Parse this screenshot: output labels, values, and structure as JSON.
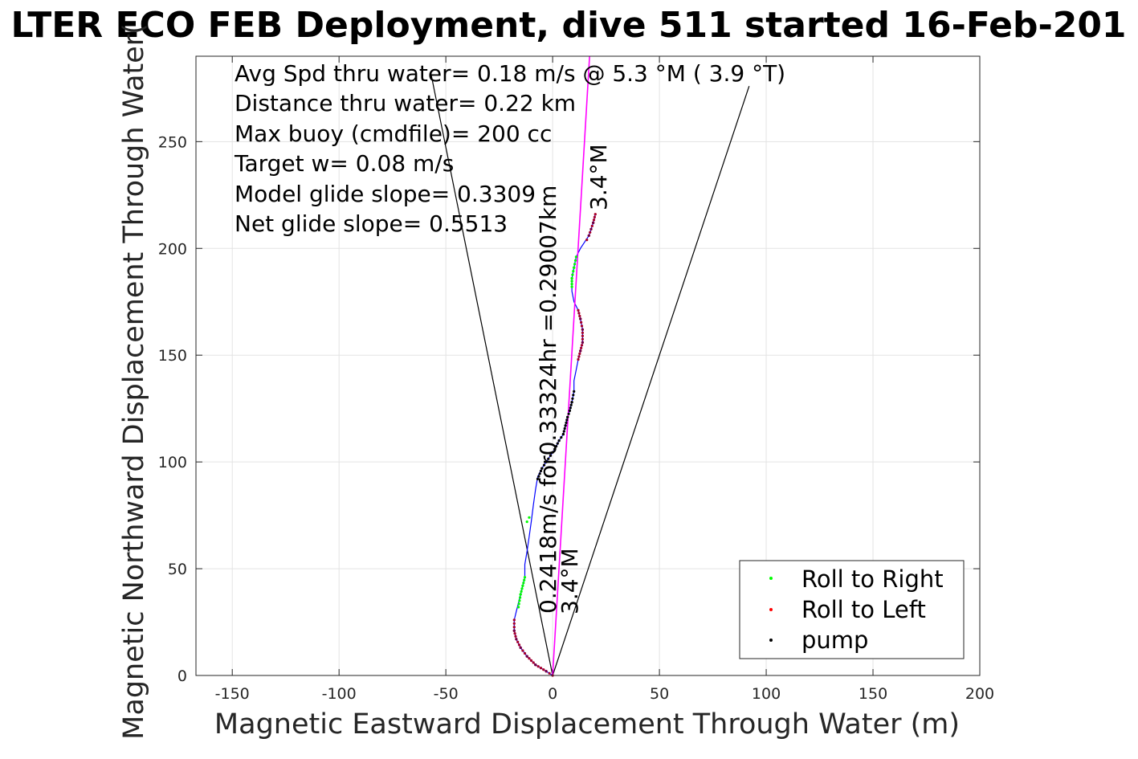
{
  "chart_data": {
    "type": "scatter",
    "title": "LTER ECO FEB Deployment, dive 511 started 16-Feb-201",
    "xlabel": "Magnetic Eastward Displacement Through Water (m)",
    "ylabel": "Magnetic Northward Displacement Through Water(",
    "xlim": [
      -167,
      200
    ],
    "ylim": [
      0,
      290
    ],
    "xticks": [
      -150,
      -100,
      -50,
      0,
      50,
      100,
      150,
      200
    ],
    "xtick_labels": [
      "-150",
      "-100",
      "-50",
      "0",
      "50",
      "100",
      "150",
      "200"
    ],
    "yticks": [
      0,
      50,
      100,
      150,
      200,
      250
    ],
    "ytick_labels": [
      "0",
      "50",
      "100",
      "150",
      "200",
      "250"
    ],
    "grid": true,
    "info_lines": [
      "Avg Spd thru water=  0.18 m/s @   5.3 °M (  3.9 °T)",
      "Distance thru water=  0.22 km",
      "Max buoy (cmdfile)= 200 cc",
      "Target w= 0.08 m/s",
      "Model glide slope= 0.3309",
      "Net glide slope= 0.5513"
    ],
    "rotated_labels": {
      "heading_top": "3.4°M",
      "heading_bottom": "3.4°M",
      "speed": "0.2418m/s for0.33324hr =0.29007km"
    },
    "legend": {
      "location": "bottom-right",
      "entries": [
        {
          "label": "Roll to Right",
          "color": "#00ff00"
        },
        {
          "label": "Roll to Left",
          "color": "#ff0000"
        },
        {
          "label": "pump",
          "color": "#000000"
        }
      ]
    },
    "track": {
      "color": "#0000ff",
      "points": [
        [
          0,
          0
        ],
        [
          -3,
          2
        ],
        [
          -8,
          5
        ],
        [
          -12,
          9
        ],
        [
          -15,
          13
        ],
        [
          -17,
          17
        ],
        [
          -18,
          21
        ],
        [
          -18,
          26
        ],
        [
          -17,
          30
        ],
        [
          -16,
          34
        ],
        [
          -15,
          38
        ],
        [
          -14,
          42
        ],
        [
          -13,
          46
        ],
        [
          -13,
          52
        ],
        [
          -12,
          58
        ],
        [
          -11,
          65
        ],
        [
          -10,
          72
        ],
        [
          -9,
          80
        ],
        [
          -8,
          87
        ],
        [
          -7,
          93
        ],
        [
          -5,
          97
        ],
        [
          -3,
          100
        ],
        [
          -1,
          103
        ],
        [
          1,
          106
        ],
        [
          3,
          110
        ],
        [
          5,
          113
        ],
        [
          6,
          117
        ],
        [
          7,
          121
        ],
        [
          8,
          124
        ],
        [
          9,
          128
        ],
        [
          10,
          133
        ],
        [
          10,
          138
        ],
        [
          11,
          143
        ],
        [
          12,
          148
        ],
        [
          13,
          152
        ],
        [
          14,
          156
        ],
        [
          14,
          162
        ],
        [
          13,
          167
        ],
        [
          12,
          171
        ],
        [
          10,
          175
        ],
        [
          9,
          180
        ],
        [
          9,
          186
        ],
        [
          10,
          191
        ],
        [
          11,
          196
        ],
        [
          13,
          200
        ],
        [
          15,
          203
        ],
        [
          17,
          206
        ],
        [
          18,
          209
        ],
        [
          19,
          212
        ],
        [
          20,
          216
        ]
      ]
    },
    "roll_left_segments": [
      [
        [
          0,
          0
        ],
        [
          -3,
          2
        ],
        [
          -8,
          5
        ],
        [
          -12,
          9
        ],
        [
          -15,
          13
        ],
        [
          -17,
          17
        ],
        [
          -18,
          21
        ],
        [
          -18,
          26
        ]
      ],
      [
        [
          12,
          148
        ],
        [
          13,
          152
        ],
        [
          14,
          156
        ],
        [
          14,
          162
        ],
        [
          13,
          167
        ],
        [
          12,
          171
        ]
      ],
      [
        [
          16,
          204
        ],
        [
          17,
          206
        ],
        [
          18,
          209
        ],
        [
          19,
          212
        ],
        [
          20,
          216
        ]
      ]
    ],
    "roll_right_segments": [
      [
        [
          -16,
          32
        ],
        [
          -15,
          38
        ],
        [
          -14,
          42
        ],
        [
          -13,
          46
        ]
      ],
      [
        [
          -12,
          72
        ],
        [
          -11,
          74
        ]
      ],
      [
        [
          9,
          182
        ],
        [
          9,
          186
        ],
        [
          10,
          191
        ],
        [
          11,
          196
        ]
      ]
    ],
    "pump_segments": [
      [
        [
          -7,
          92
        ],
        [
          -5,
          97
        ],
        [
          -3,
          100
        ],
        [
          -1,
          103
        ],
        [
          1,
          106
        ],
        [
          3,
          110
        ],
        [
          5,
          113
        ],
        [
          6,
          117
        ],
        [
          7,
          121
        ],
        [
          8,
          124
        ],
        [
          9,
          128
        ],
        [
          10,
          133
        ]
      ]
    ],
    "heading_line": {
      "color": "#ff00ff",
      "from": [
        0,
        0
      ],
      "to": [
        17.3,
        290
      ]
    },
    "cone_lines": {
      "color": "#000000",
      "lines": [
        {
          "from": [
            0,
            0
          ],
          "to": [
            -57,
            282
          ]
        },
        {
          "from": [
            0,
            0
          ],
          "to": [
            92,
            276
          ]
        }
      ]
    }
  }
}
